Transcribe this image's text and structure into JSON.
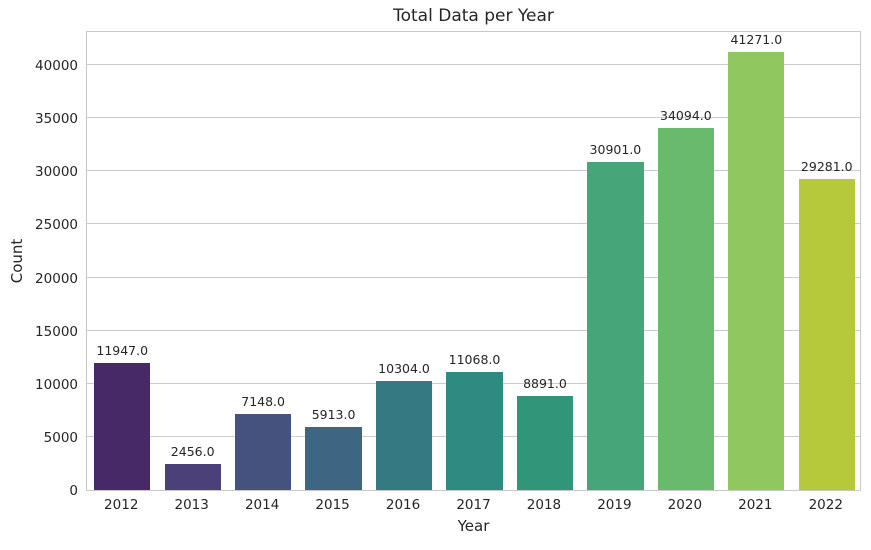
{
  "chart_data": {
    "type": "bar",
    "title": "Total Data per Year",
    "xlabel": "Year",
    "ylabel": "Count",
    "categories": [
      "2012",
      "2013",
      "2014",
      "2015",
      "2016",
      "2017",
      "2018",
      "2019",
      "2020",
      "2021",
      "2022"
    ],
    "values": [
      11947,
      2456,
      7148,
      5913,
      10304,
      11068,
      8891,
      30901,
      34094,
      41271,
      29281
    ],
    "bar_labels": [
      "11947.0",
      "2456.0",
      "7148.0",
      "5913.0",
      "10304.0",
      "11068.0",
      "8891.0",
      "30901.0",
      "34094.0",
      "41271.0",
      "29281.0"
    ],
    "bar_colors": [
      "#482968",
      "#4b4078",
      "#45527e",
      "#3e6582",
      "#357983",
      "#2f8b81",
      "#31957a",
      "#47a679",
      "#69ba6c",
      "#90c75e",
      "#b6c93b"
    ],
    "yticks": [
      0,
      5000,
      10000,
      15000,
      20000,
      25000,
      30000,
      35000,
      40000
    ],
    "ytick_labels": [
      "0",
      "5000",
      "10000",
      "15000",
      "20000",
      "25000",
      "30000",
      "35000",
      "40000"
    ],
    "ylim": [
      0,
      43300
    ],
    "bar_width_ratio": 0.8,
    "grid": true,
    "legend_position": "none",
    "colors": {
      "grid": "#cccccc",
      "border": "#c9c9c9",
      "text": "#262626",
      "background": "#ffffff"
    }
  }
}
